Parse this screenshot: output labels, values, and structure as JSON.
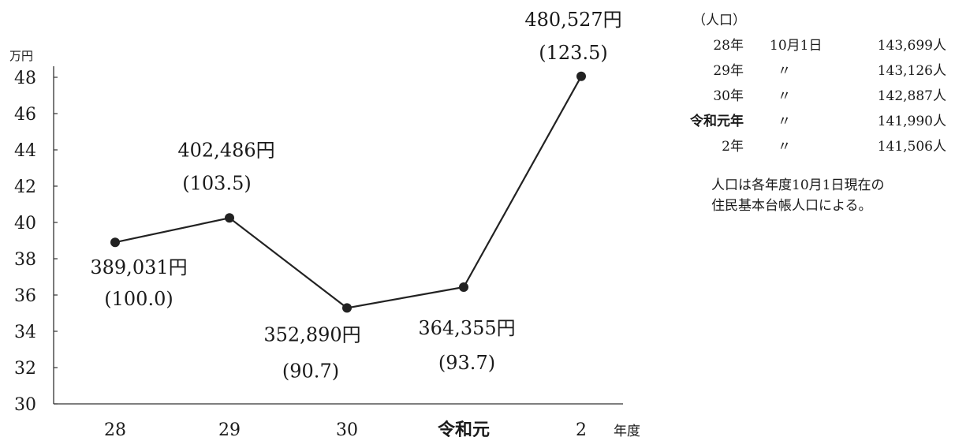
{
  "chart_data": {
    "type": "line",
    "y_unit_label": "万円",
    "x_unit_label": "年度",
    "ylim": [
      30,
      48
    ],
    "yticks": [
      "30",
      "32",
      "34",
      "36",
      "38",
      "40",
      "42",
      "44",
      "46",
      "48"
    ],
    "categories": [
      "28",
      "29",
      "30",
      "令和元",
      "2"
    ],
    "values": [
      38.9031,
      40.2486,
      35.289,
      36.4355,
      48.0527
    ],
    "value_labels": [
      "389,031円",
      "402,486円",
      "352,890円",
      "364,355円",
      "480,527円"
    ],
    "index_labels": [
      "(100.0)",
      "(103.5)",
      "(90.7)",
      "(93.7)",
      "(123.5)"
    ],
    "line_color": "#222222",
    "grid": false
  },
  "population": {
    "title": "（人口）",
    "rows": [
      {
        "year": "28年",
        "date": "10月1日",
        "pop": "143,699人"
      },
      {
        "year": "29年",
        "date": "〃",
        "pop": "143,126人"
      },
      {
        "year": "30年",
        "date": "〃",
        "pop": "142,887人"
      },
      {
        "year": "令和元年",
        "date": "〃",
        "pop": "141,990人"
      },
      {
        "year": "2年",
        "date": "〃",
        "pop": "141,506人"
      }
    ],
    "note_line1": "人口は各年度10月1日現在の",
    "note_line2": "住民基本台帳人口による。"
  }
}
